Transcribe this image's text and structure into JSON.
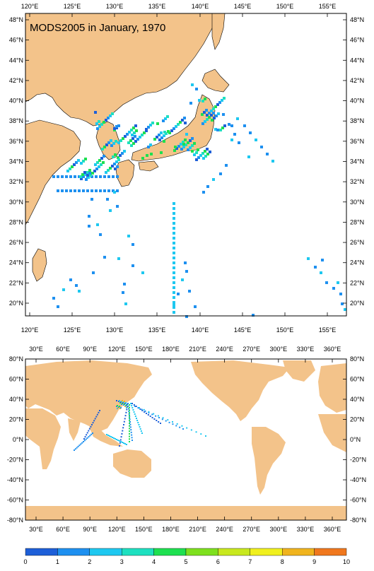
{
  "map_top": {
    "title": "MODS2005 in January, 1970",
    "lon_labels": [
      "120°E",
      "125°E",
      "130°E",
      "135°E",
      "140°E",
      "145°E",
      "150°E",
      "155°E"
    ],
    "lat_labels": [
      "48°N",
      "46°N",
      "44°N",
      "42°N",
      "40°N",
      "38°N",
      "36°N",
      "34°N",
      "32°N",
      "30°N",
      "28°N",
      "26°N",
      "24°N",
      "22°N",
      "20°N"
    ]
  },
  "map_bottom": {
    "lon_labels": [
      "30°E",
      "60°E",
      "90°E",
      "120°E",
      "150°E",
      "180°E",
      "210°E",
      "240°E",
      "270°E",
      "300°E",
      "330°E",
      "360°E"
    ],
    "lat_labels": [
      "80°N",
      "60°N",
      "40°N",
      "20°N",
      "0°N",
      "-20°N",
      "-40°N",
      "-60°N",
      "-80°N"
    ]
  },
  "colorbar": {
    "labels": [
      "0",
      "1",
      "2",
      "3",
      "4",
      "5",
      "6",
      "7",
      "8",
      "9",
      "10"
    ],
    "colors": [
      "#1e5fd8",
      "#1e90f0",
      "#1ec8f0",
      "#1ee0c0",
      "#1ee050",
      "#7ee01e",
      "#c8e81e",
      "#f0f01e",
      "#f0b41e",
      "#f0781e"
    ]
  },
  "colors": {
    "land": "#f3c38a",
    "ocean": "#ffffff"
  }
}
